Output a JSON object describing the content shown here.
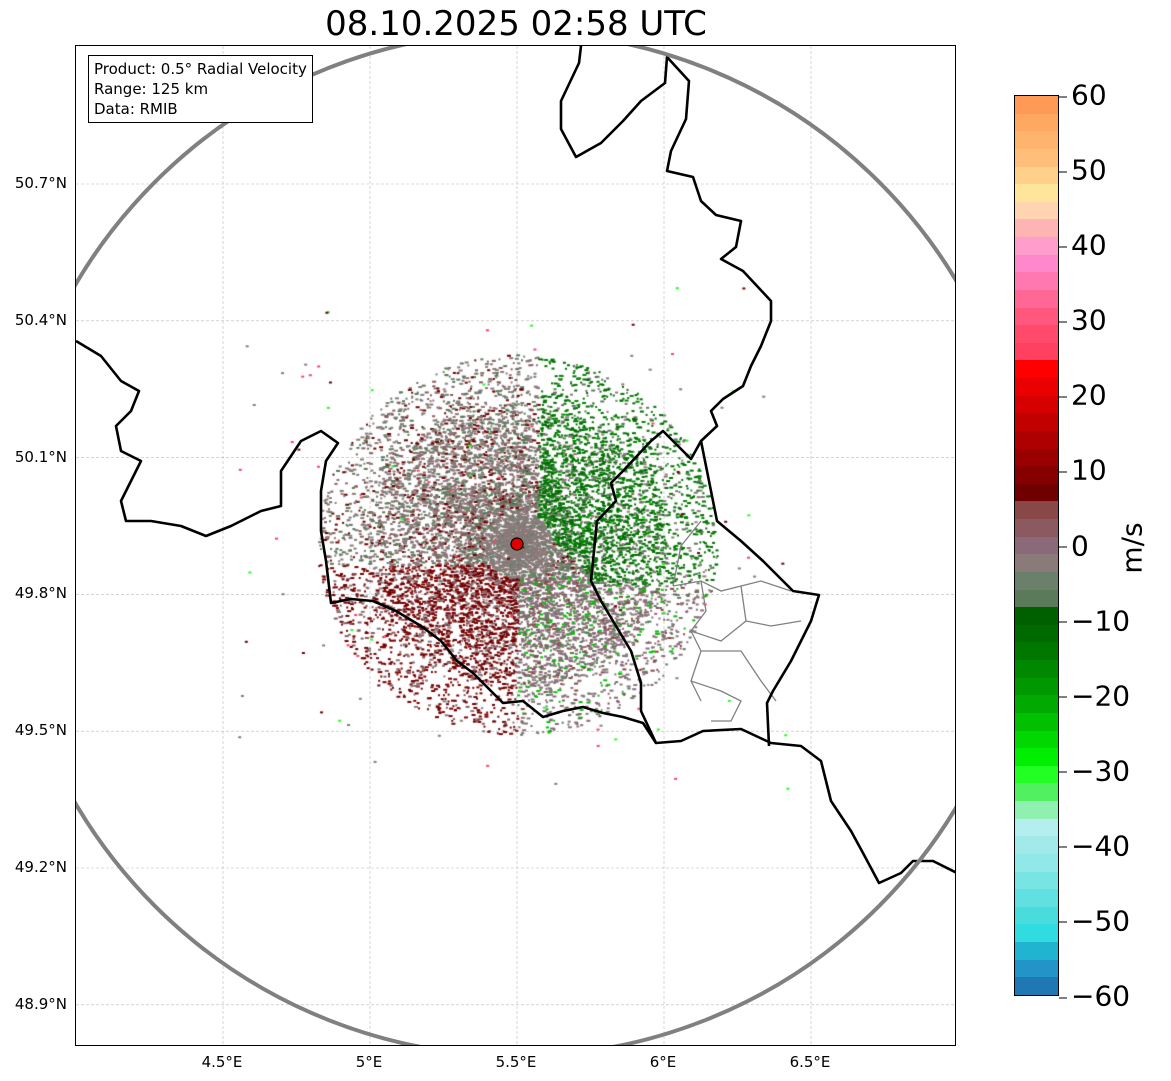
{
  "chart_data": {
    "type": "heatmap",
    "title": "08.10.2025 02:58 UTC",
    "annotation": [
      "Product: 0.5° Radial Velocity",
      "Range: 125 km",
      "Data: RMIB"
    ],
    "xlabel": "",
    "ylabel": "",
    "xlim": [
      4.0,
      7.0
    ],
    "ylim": [
      48.8,
      51.0
    ],
    "x_ticks": [
      4.5,
      5.0,
      5.5,
      6.0,
      6.5
    ],
    "x_tick_labels": [
      "4.5°E",
      "5°E",
      "5.5°E",
      "6°E",
      "6.5°E"
    ],
    "y_ticks": [
      50.7,
      50.4,
      50.1,
      49.8,
      49.5,
      49.2,
      48.9
    ],
    "y_tick_labels": [
      "50.7°N",
      "50.4°N",
      "50.1°N",
      "49.8°N",
      "49.5°N",
      "49.2°N",
      "48.9°N"
    ],
    "grid": true,
    "radar_site": {
      "lon": 5.5,
      "lat": 49.91
    },
    "range_km": 125,
    "colorbar": {
      "label": "m/s",
      "range": [
        -60,
        60
      ],
      "ticks": [
        60,
        50,
        40,
        30,
        20,
        10,
        0,
        -10,
        -20,
        -30,
        -40,
        -50,
        -60
      ],
      "tick_labels": [
        "60",
        "50",
        "40",
        "30",
        "20",
        "10",
        "0",
        "−10",
        "−20",
        "−30",
        "−40",
        "−50",
        "−60"
      ],
      "colors_top_to_bottom": [
        "#ff9955",
        "#ffa862",
        "#ffb46e",
        "#ffbf7a",
        "#ffd08a",
        "#ffe49c",
        "#ffd4b0",
        "#ffb4b4",
        "#ff9ecc",
        "#ff88cc",
        "#ff78b0",
        "#ff6894",
        "#ff587c",
        "#ff4a6c",
        "#ff4060",
        "#ff0000",
        "#ea0000",
        "#d60000",
        "#c20000",
        "#ae0000",
        "#9a0000",
        "#860000",
        "#700000",
        "#884848",
        "#8a5a60",
        "#8a6a78",
        "#8a7a7a",
        "#6a806a",
        "#5a7a5a",
        "#006000",
        "#006a00",
        "#007800",
        "#008800",
        "#009800",
        "#00aa00",
        "#00c000",
        "#00d800",
        "#00ee00",
        "#22ff22",
        "#50f060",
        "#90f0b0",
        "#b4eeee",
        "#a2eaea",
        "#90e8e8",
        "#78e4e4",
        "#60e0e0",
        "#48dcdc",
        "#30dce0",
        "#20b4d0",
        "#2294c8",
        "#1f77b4"
      ]
    }
  }
}
